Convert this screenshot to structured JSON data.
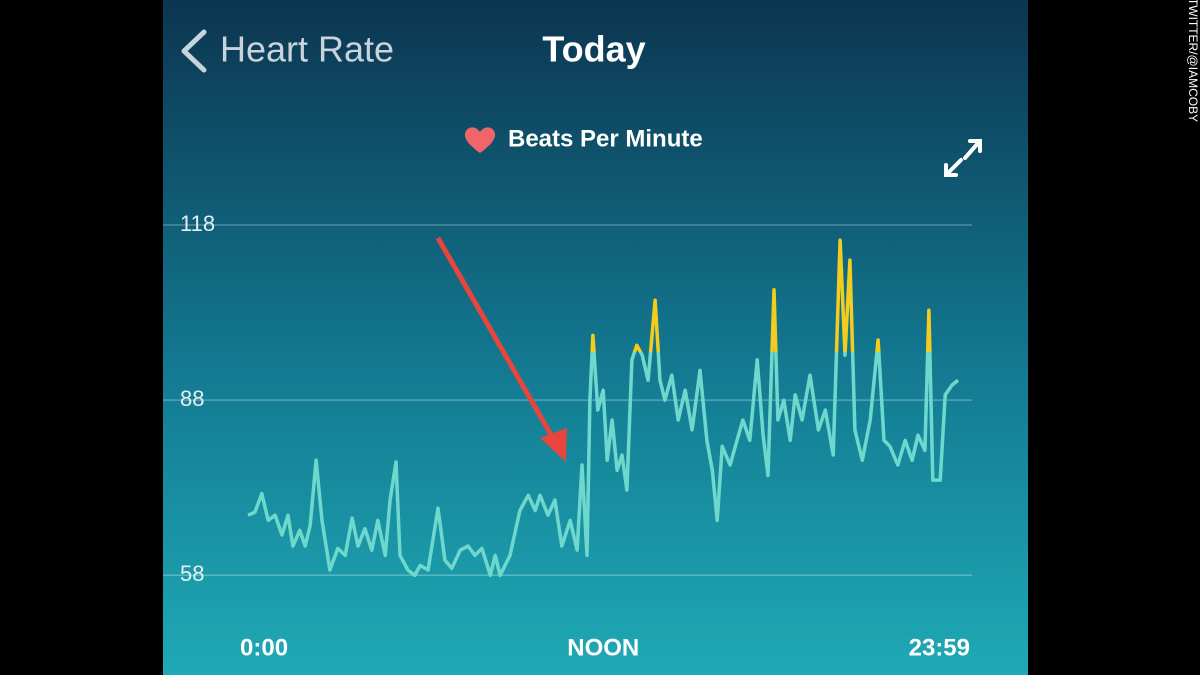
{
  "header": {
    "back": "Heart Rate",
    "title": "Today"
  },
  "credit": "TWITTER/@IAMCOBY",
  "chart_data": {
    "type": "line",
    "x": [
      0,
      14,
      28,
      41,
      55,
      69,
      81,
      91,
      105,
      116,
      126,
      138,
      150,
      166,
      182,
      197,
      211,
      223,
      237,
      251,
      263,
      278,
      288,
      300,
      308,
      324,
      338,
      349,
      365,
      385,
      399,
      413,
      430,
      446,
      460,
      474,
      491,
      501,
      511,
      531,
      551,
      568,
      582,
      592,
      608,
      622,
      636,
      653,
      667,
      677,
      687,
      693,
      699,
      709,
      720,
      728,
      738,
      748,
      758,
      768,
      778,
      788,
      799,
      811,
      825,
      835,
      845,
      859,
      872,
      886,
      900,
      916,
      930,
      941,
      951,
      961,
      977,
      991,
      1003,
      1017,
      1032,
      1044,
      1054,
      1066,
      1074,
      1086,
      1099,
      1109,
      1123,
      1139,
      1156,
      1170,
      1186,
      1200,
      1210,
      1220,
      1230,
      1245,
      1261,
      1277,
      1289,
      1301,
      1317,
      1332,
      1346,
      1358,
      1372,
      1380,
      1388,
      1403,
      1413,
      1427,
      1439
    ],
    "series": [
      {
        "name": "Beats Per Minute",
        "color": "#6fd8cc",
        "peak_color": "#f2cc1f",
        "values": [
          68.3,
          68.8,
          72,
          67.4,
          68.3,
          64.9,
          68.3,
          63,
          65.7,
          63,
          66.6,
          77.7,
          67.4,
          58.9,
          62.6,
          61.4,
          67.8,
          63,
          66,
          62.3,
          67.4,
          61.4,
          70.9,
          77.4,
          61.4,
          58.9,
          58,
          59.7,
          58.9,
          69.5,
          60.6,
          59.2,
          62.3,
          63,
          61.4,
          62.6,
          58,
          61.4,
          58,
          61.4,
          69.1,
          71.7,
          69.1,
          71.7,
          68.3,
          70.9,
          63,
          67.4,
          62.3,
          76.9,
          61.4,
          88,
          99.1,
          86.3,
          89.7,
          77.7,
          84.6,
          76,
          78.6,
          72.6,
          94.9,
          97.4,
          95.7,
          91.4,
          105.1,
          91.4,
          88,
          92.3,
          84.6,
          89.7,
          82.9,
          93.1,
          81.1,
          76,
          67.4,
          80.1,
          76.9,
          81.1,
          84.6,
          81.1,
          94.9,
          82,
          75.1,
          106.9,
          84.6,
          88,
          81.1,
          88.9,
          84.6,
          92.3,
          82.9,
          86.3,
          78.6,
          115.4,
          95.7,
          112,
          82.9,
          77.7,
          84.6,
          98.3,
          81.1,
          80.1,
          76.9,
          81.1,
          77.7,
          82,
          79.4,
          103.4,
          74.3,
          74.3,
          88.9,
          90.6,
          91.4
        ]
      }
    ],
    "xlim": [
      0,
      1439
    ],
    "xticks": [
      {
        "value": 0,
        "label": "0:00"
      },
      {
        "value": 720,
        "label": "NOON"
      },
      {
        "value": 1439,
        "label": "23:59"
      }
    ],
    "ylim": [
      50,
      124
    ],
    "yticks": [
      58,
      88,
      118
    ],
    "grid": true
  }
}
